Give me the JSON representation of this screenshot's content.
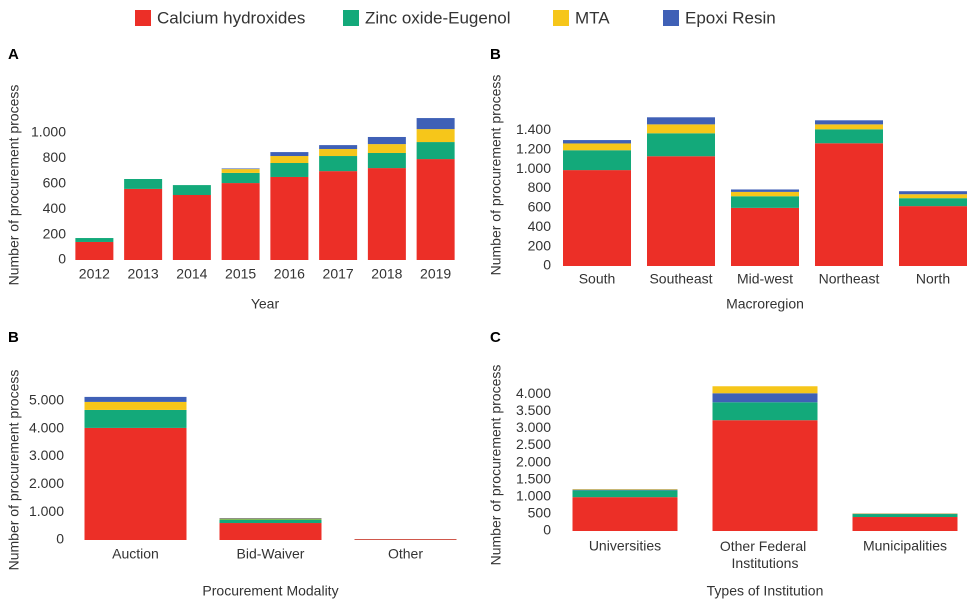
{
  "chart_data": [
    {
      "type": "bar",
      "stacked": true,
      "panel_label": "A",
      "xlabel": "Year",
      "ylabel": "Number of procurement process",
      "categories": [
        "2012",
        "2013",
        "2014",
        "2015",
        "2016",
        "2017",
        "2018",
        "2019"
      ],
      "series": [
        {
          "name": "Calcium hydroxides",
          "color": "#ec2f27",
          "values": [
            142,
            560,
            512,
            606,
            654,
            700,
            724,
            795
          ]
        },
        {
          "name": "Zinc oxide-Eugenol",
          "color": "#13a97a",
          "values": [
            31,
            78,
            78,
            80,
            110,
            119,
            119,
            134
          ]
        },
        {
          "name": "MTA",
          "color": "#f6c61a",
          "values": [
            0,
            0,
            0,
            30,
            55,
            55,
            70,
            102
          ]
        },
        {
          "name": "Epoxi Resin",
          "color": "#3f60b6",
          "values": [
            0,
            0,
            0,
            5,
            31,
            31,
            56,
            87
          ]
        }
      ],
      "ylim": [
        0,
        1150
      ],
      "yticks": [
        0,
        200,
        400,
        600,
        800,
        {
          "value": 1000,
          "label": "1.000"
        }
      ],
      "grid": false
    },
    {
      "type": "bar",
      "stacked": true,
      "panel_label": "B",
      "xlabel": "Macroregion",
      "ylabel": "Number of procurement process",
      "categories": [
        "South",
        "Southeast",
        "Mid-west",
        "Northeast",
        "North"
      ],
      "series": [
        {
          "name": "Calcium hydroxides",
          "color": "#ec2f27",
          "values": [
            990,
            1133,
            600,
            1267,
            618
          ]
        },
        {
          "name": "Zinc oxide-Eugenol",
          "color": "#13a97a",
          "values": [
            205,
            237,
            120,
            144,
            82
          ]
        },
        {
          "name": "MTA",
          "color": "#f6c61a",
          "values": [
            70,
            92,
            45,
            51,
            41
          ]
        },
        {
          "name": "Epoxi Resin",
          "color": "#3f60b6",
          "values": [
            35,
            73,
            25,
            42,
            31
          ]
        }
      ],
      "ylim": [
        0,
        1600
      ],
      "yticks": [
        0,
        200,
        400,
        600,
        800,
        {
          "value": 1000,
          "label": "1.000"
        },
        {
          "value": 1200,
          "label": "1.200"
        },
        {
          "value": 1400,
          "label": "1.400"
        }
      ],
      "grid": false
    },
    {
      "type": "bar",
      "stacked": true,
      "panel_label": "B",
      "xlabel": "Procurement Modality",
      "ylabel": "Number of procurement process",
      "categories": [
        "Auction",
        "Bid-Waiver",
        "Other"
      ],
      "series": [
        {
          "name": "Calcium hydroxides",
          "color": "#ec2f27",
          "values": [
            4029,
            610,
            30
          ]
        },
        {
          "name": "Zinc oxide-Eugenol",
          "color": "#13a97a",
          "values": [
            647,
            130,
            5
          ]
        },
        {
          "name": "MTA",
          "color": "#f6c61a",
          "values": [
            288,
            30,
            0
          ]
        },
        {
          "name": "Epoxi Resin",
          "color": "#3f60b6",
          "values": [
            180,
            20,
            0
          ]
        }
      ],
      "ylim": [
        0,
        5500
      ],
      "yticks": [
        0,
        {
          "value": 1000,
          "label": "1.000"
        },
        {
          "value": 2000,
          "label": "2.000"
        },
        {
          "value": 3000,
          "label": "3.000"
        },
        {
          "value": 4000,
          "label": "4.000"
        },
        {
          "value": 5000,
          "label": "5.000"
        }
      ],
      "grid": false
    },
    {
      "type": "bar",
      "stacked": true,
      "panel_label": "C",
      "xlabel": "Types of Institution",
      "ylabel": "Number of procurement process",
      "categories": [
        "Universities",
        "Other Federal Institutions",
        "Municipalities"
      ],
      "series": [
        {
          "name": "Calcium hydroxides",
          "color": "#ec2f27",
          "values": [
            990,
            3241,
            409
          ]
        },
        {
          "name": "Zinc oxide-Eugenol",
          "color": "#13a97a",
          "values": [
            200,
            525,
            87
          ]
        },
        {
          "name": "Epoxi Resin",
          "color": "#3f60b6",
          "values": [
            20,
            263,
            10
          ]
        },
        {
          "name": "MTA",
          "color": "#f6c61a",
          "values": [
            15,
            205,
            10
          ]
        }
      ],
      "ylim": [
        0,
        4300
      ],
      "yticks": [
        0,
        500,
        {
          "value": 1000,
          "label": "1.000"
        },
        {
          "value": 1500,
          "label": "1.500"
        },
        {
          "value": 2000,
          "label": "2.000"
        },
        {
          "value": 2500,
          "label": "2.500"
        },
        {
          "value": 3000,
          "label": "3.000"
        },
        {
          "value": 3500,
          "label": "3.500"
        },
        {
          "value": 4000,
          "label": "4.000"
        }
      ],
      "grid": false
    }
  ]
}
